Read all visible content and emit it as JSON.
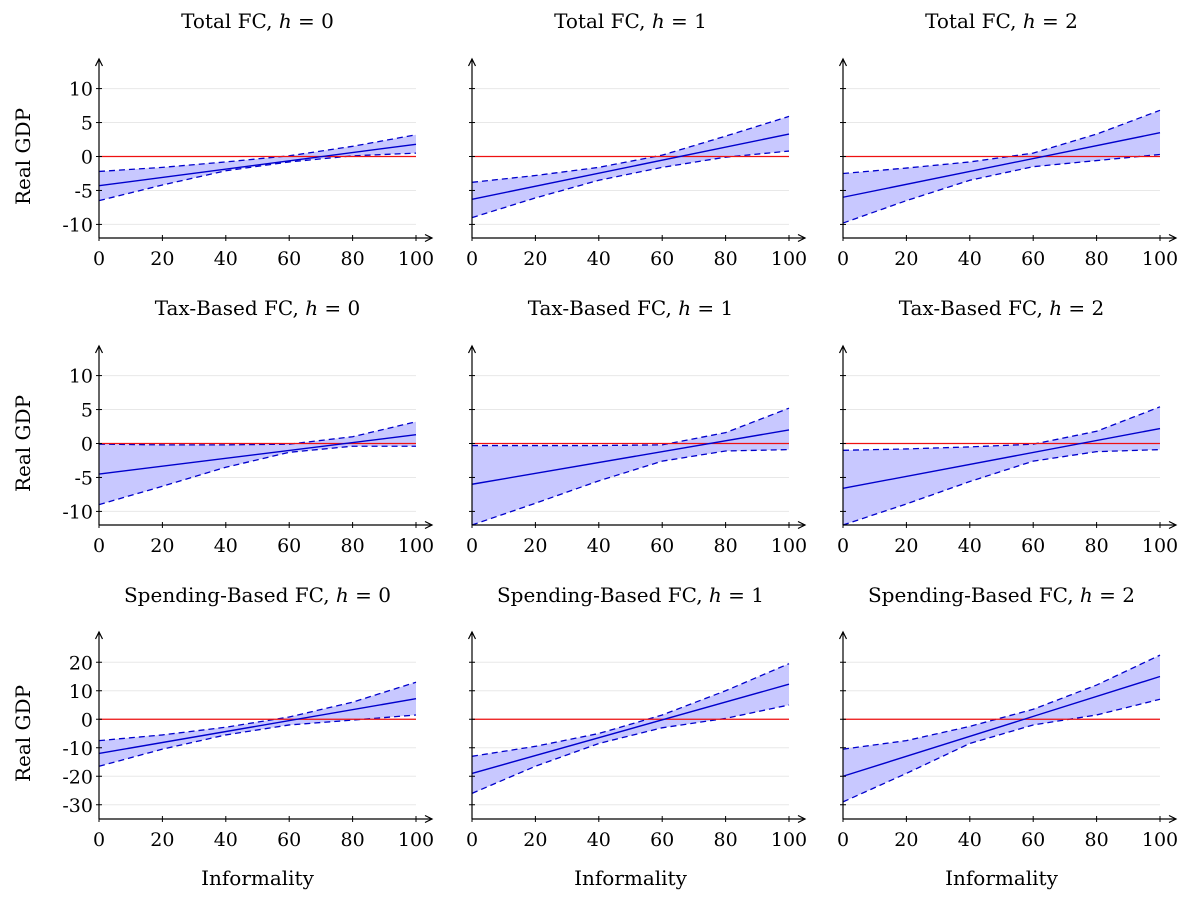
{
  "figure": {
    "xlabel": "Informality",
    "ylabel": "Real GDP"
  },
  "colors": {
    "band_fill": "#c8c8ff",
    "estimate_line": "#0000cc",
    "zero_line": "#ee1111",
    "grid": "#e8e8e8"
  },
  "chart_data": [
    {
      "type": "area",
      "title_text": "Total FC, ",
      "title_math": "h",
      "title_eq": " = 0",
      "x": [
        0,
        100
      ],
      "y_est": [
        -4.3,
        1.8
      ],
      "band_x": [
        0,
        20,
        40,
        60,
        80,
        100
      ],
      "band_lower": [
        -6.5,
        -4.2,
        -2.1,
        -0.8,
        0.1,
        0.5
      ],
      "band_upper": [
        -2.2,
        -1.6,
        -0.8,
        0.1,
        1.5,
        3.2
      ],
      "xlim": [
        0,
        100
      ],
      "ylim": [
        -12,
        12
      ],
      "yticks": [
        10,
        5,
        0,
        -5,
        -10
      ],
      "xticks": [
        0,
        20,
        40,
        60,
        80,
        100
      ],
      "show_ylabel": true,
      "show_xlabel": false
    },
    {
      "type": "area",
      "title_text": "Total FC, ",
      "title_math": "h",
      "title_eq": " = 1",
      "x": [
        0,
        100
      ],
      "y_est": [
        -6.3,
        3.3
      ],
      "band_x": [
        0,
        20,
        40,
        60,
        80,
        100
      ],
      "band_lower": [
        -9.0,
        -6.1,
        -3.5,
        -1.6,
        -0.1,
        0.8
      ],
      "band_upper": [
        -3.8,
        -2.8,
        -1.6,
        0.2,
        3.0,
        5.9
      ],
      "xlim": [
        0,
        100
      ],
      "ylim": [
        -12,
        12
      ],
      "yticks": [
        10,
        5,
        0,
        -5,
        -10
      ],
      "xticks": [
        0,
        20,
        40,
        60,
        80,
        100
      ],
      "show_ylabel": false,
      "show_xlabel": false
    },
    {
      "type": "area",
      "title_text": "Total FC, ",
      "title_math": "h",
      "title_eq": " = 2",
      "x": [
        0,
        100
      ],
      "y_est": [
        -6.0,
        3.5
      ],
      "band_x": [
        0,
        20,
        40,
        60,
        80,
        100
      ],
      "band_lower": [
        -9.8,
        -6.5,
        -3.5,
        -1.5,
        -0.6,
        0.3
      ],
      "band_upper": [
        -2.5,
        -1.7,
        -0.8,
        0.5,
        3.3,
        6.8
      ],
      "xlim": [
        0,
        100
      ],
      "ylim": [
        -12,
        12
      ],
      "yticks": [
        10,
        5,
        0,
        -5,
        -10
      ],
      "xticks": [
        0,
        20,
        40,
        60,
        80,
        100
      ],
      "show_ylabel": false,
      "show_xlabel": false
    },
    {
      "type": "area",
      "title_text": "Tax-Based FC, ",
      "title_math": "h",
      "title_eq": " = 0",
      "x": [
        0,
        100
      ],
      "y_est": [
        -4.5,
        1.3
      ],
      "band_x": [
        0,
        20,
        40,
        60,
        80,
        100
      ],
      "band_lower": [
        -9.0,
        -6.3,
        -3.5,
        -1.3,
        -0.4,
        -0.4
      ],
      "band_upper": [
        -0.1,
        -0.2,
        -0.2,
        -0.1,
        1.0,
        3.2
      ],
      "xlim": [
        0,
        100
      ],
      "ylim": [
        -12,
        12
      ],
      "yticks": [
        10,
        5,
        0,
        -5,
        -10
      ],
      "xticks": [
        0,
        20,
        40,
        60,
        80,
        100
      ],
      "show_ylabel": true,
      "show_xlabel": false
    },
    {
      "type": "area",
      "title_text": "Tax-Based FC, ",
      "title_math": "h",
      "title_eq": " = 1",
      "x": [
        0,
        100
      ],
      "y_est": [
        -6.0,
        2.0
      ],
      "band_x": [
        0,
        20,
        40,
        60,
        80,
        100
      ],
      "band_lower": [
        -12.0,
        -8.8,
        -5.5,
        -2.6,
        -1.1,
        -0.9
      ],
      "band_upper": [
        -0.3,
        -0.3,
        -0.3,
        -0.2,
        1.6,
        5.2
      ],
      "xlim": [
        0,
        100
      ],
      "ylim": [
        -12,
        12
      ],
      "yticks": [
        10,
        5,
        0,
        -5,
        -10
      ],
      "xticks": [
        0,
        20,
        40,
        60,
        80,
        100
      ],
      "show_ylabel": false,
      "show_xlabel": false
    },
    {
      "type": "area",
      "title_text": "Tax-Based FC, ",
      "title_math": "h",
      "title_eq": " = 2",
      "x": [
        0,
        100
      ],
      "y_est": [
        -6.6,
        2.2
      ],
      "band_x": [
        0,
        20,
        40,
        60,
        80,
        100
      ],
      "band_lower": [
        -12.0,
        -8.9,
        -5.6,
        -2.6,
        -1.2,
        -0.9
      ],
      "band_upper": [
        -1.0,
        -0.8,
        -0.5,
        -0.1,
        1.8,
        5.4
      ],
      "xlim": [
        0,
        100
      ],
      "ylim": [
        -12,
        12
      ],
      "yticks": [
        10,
        5,
        0,
        -5,
        -10
      ],
      "xticks": [
        0,
        20,
        40,
        60,
        80,
        100
      ],
      "show_ylabel": false,
      "show_xlabel": false
    },
    {
      "type": "area",
      "title_text": "Spending-Based FC, ",
      "title_math": "h",
      "title_eq": " = 0",
      "x": [
        0,
        100
      ],
      "y_est": [
        -12.0,
        7.2
      ],
      "band_x": [
        0,
        20,
        40,
        60,
        80,
        100
      ],
      "band_lower": [
        -16.5,
        -10.5,
        -5.5,
        -2.0,
        -0.3,
        1.5
      ],
      "band_upper": [
        -7.5,
        -5.5,
        -2.8,
        0.8,
        6.0,
        13.0
      ],
      "xlim": [
        0,
        100
      ],
      "ylim": [
        -35,
        25
      ],
      "yticks": [
        20,
        10,
        0,
        -10,
        -20,
        -30
      ],
      "xticks": [
        0,
        20,
        40,
        60,
        80,
        100
      ],
      "show_ylabel": true,
      "show_xlabel": true
    },
    {
      "type": "area",
      "title_text": "Spending-Based FC, ",
      "title_math": "h",
      "title_eq": " = 1",
      "x": [
        0,
        100
      ],
      "y_est": [
        -19.0,
        12.3
      ],
      "band_x": [
        0,
        20,
        40,
        60,
        80,
        100
      ],
      "band_lower": [
        -26.0,
        -16.5,
        -8.5,
        -3.0,
        0.3,
        5.0
      ],
      "band_upper": [
        -13.0,
        -9.5,
        -5.0,
        1.5,
        10.0,
        19.5
      ],
      "xlim": [
        0,
        100
      ],
      "ylim": [
        -35,
        25
      ],
      "yticks": [
        20,
        10,
        0,
        -10,
        -20,
        -30
      ],
      "xticks": [
        0,
        20,
        40,
        60,
        80,
        100
      ],
      "show_ylabel": false,
      "show_xlabel": true
    },
    {
      "type": "area",
      "title_text": "Spending-Based FC, ",
      "title_math": "h",
      "title_eq": " = 2",
      "x": [
        0,
        100
      ],
      "y_est": [
        -20.0,
        15.0
      ],
      "band_x": [
        0,
        20,
        40,
        60,
        80,
        100
      ],
      "band_lower": [
        -29.0,
        -19.0,
        -8.5,
        -2.0,
        1.5,
        7.0
      ],
      "band_upper": [
        -10.5,
        -7.5,
        -2.5,
        3.5,
        12.0,
        22.5
      ],
      "xlim": [
        0,
        100
      ],
      "ylim": [
        -35,
        25
      ],
      "yticks": [
        20,
        10,
        0,
        -10,
        -20,
        -30
      ],
      "xticks": [
        0,
        20,
        40,
        60,
        80,
        100
      ],
      "show_ylabel": false,
      "show_xlabel": true
    }
  ]
}
